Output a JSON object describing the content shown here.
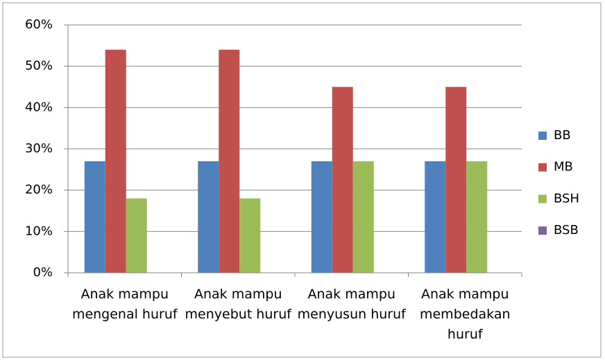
{
  "chart_data": {
    "type": "bar",
    "categories": [
      "Anak mampu mengenal huruf",
      "Anak mampu menyebut huruf",
      "Anak mampu menyusun huruf",
      "Anak mampu membedakan huruf"
    ],
    "series": [
      {
        "name": "BB",
        "color": "#4f81bd",
        "values": [
          27,
          27,
          27,
          27
        ]
      },
      {
        "name": "MB",
        "color": "#c0504d",
        "values": [
          54,
          54,
          45,
          45
        ]
      },
      {
        "name": "BSH",
        "color": "#9bbb59",
        "values": [
          18,
          18,
          27,
          27
        ]
      },
      {
        "name": "BSB",
        "color": "#8064a2",
        "values": [
          0,
          0,
          0,
          0
        ]
      }
    ],
    "ylim": [
      0,
      60
    ],
    "yticks": [
      {
        "value": 0,
        "label": "0%"
      },
      {
        "value": 10,
        "label": "10%"
      },
      {
        "value": 20,
        "label": "20%"
      },
      {
        "value": 30,
        "label": "30%"
      },
      {
        "value": 40,
        "label": "40%"
      },
      {
        "value": 50,
        "label": "50%"
      },
      {
        "value": 60,
        "label": "60%"
      }
    ],
    "grid": true,
    "legend": "right"
  }
}
